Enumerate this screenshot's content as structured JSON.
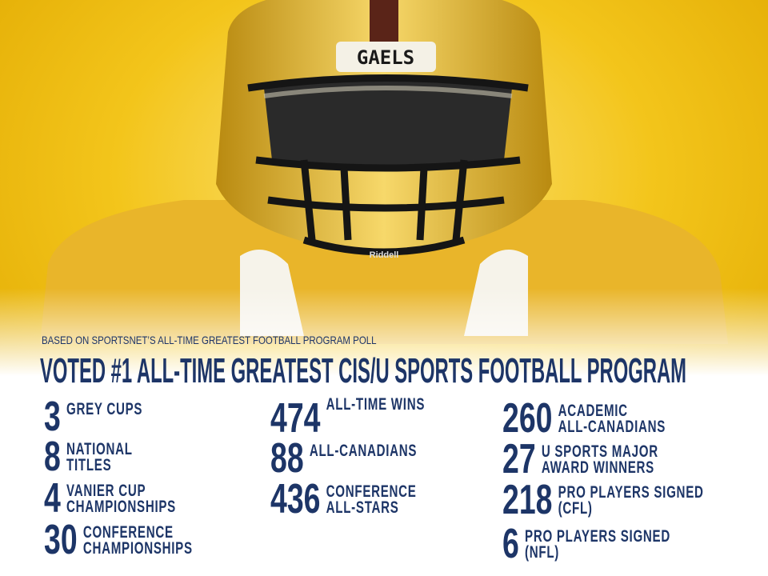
{
  "helmet": {
    "label": "GAELS",
    "brand": "Riddell"
  },
  "header": {
    "subtitle": "BASED ON SPORTSNET’S ALL-TIME GREATEST FOOTBALL PROGRAM POLL",
    "title": "VOTED #1 ALL-TIME GREATEST CIS/U SPORTS FOOTBALL PROGRAM"
  },
  "columns": [
    [
      {
        "number": 3,
        "lines": [
          "GREY CUPS"
        ]
      },
      {
        "number": 8,
        "lines": [
          "NATIONAL",
          "TITLES"
        ]
      },
      {
        "number": 4,
        "lines": [
          "VANIER CUP",
          "CHAMPIONSHIPS"
        ]
      },
      {
        "number": 30,
        "lines": [
          "CONFERENCE",
          "CHAMPIONSHIPS"
        ]
      }
    ],
    [
      {
        "number": 474,
        "lines": [
          "ALL-TIME WINS"
        ]
      },
      {
        "number": 88,
        "lines": [
          "ALL-CANADIANS"
        ]
      },
      {
        "number": 436,
        "lines": [
          "CONFERENCE",
          "ALL-STARS"
        ]
      }
    ],
    [
      {
        "number": 260,
        "lines": [
          "ACADEMIC",
          "ALL-CANADIANS"
        ]
      },
      {
        "number": 27,
        "lines": [
          "U SPORTS MAJOR",
          "AWARD WINNERS"
        ]
      },
      {
        "number": 218,
        "lines": [
          "PRO PLAYERS SIGNED",
          "(CFL)"
        ]
      },
      {
        "number": 6,
        "lines": [
          "PRO PLAYERS SIGNED",
          "(NFL)"
        ]
      }
    ]
  ]
}
